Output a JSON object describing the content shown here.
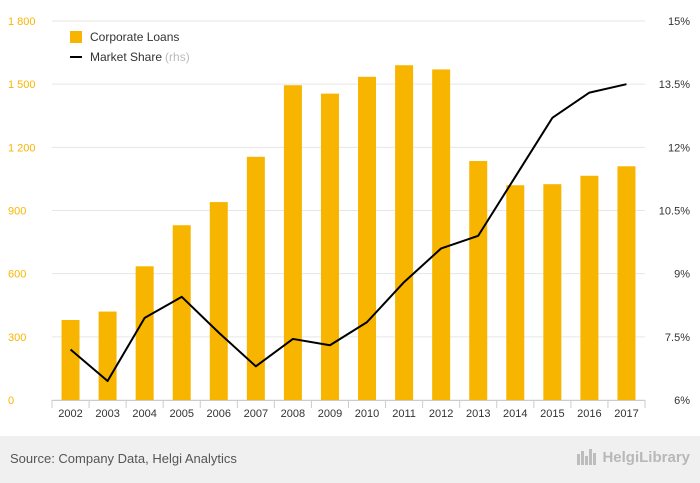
{
  "chart_data": {
    "type": "bar",
    "categories": [
      "2002",
      "2003",
      "2004",
      "2005",
      "2006",
      "2007",
      "2008",
      "2009",
      "2010",
      "2011",
      "2012",
      "2013",
      "2014",
      "2015",
      "2016",
      "2017"
    ],
    "series": [
      {
        "name": "Corporate Loans",
        "kind": "bar",
        "axis": "left",
        "color": "#f8b500",
        "values": [
          380,
          420,
          635,
          830,
          940,
          1155,
          1495,
          1455,
          1535,
          1590,
          1570,
          1135,
          1020,
          1025,
          1065,
          1110
        ]
      },
      {
        "name": "Market Share",
        "kind": "line",
        "axis": "right",
        "color": "#000000",
        "values": [
          7.2,
          6.45,
          7.95,
          8.45,
          7.6,
          6.8,
          7.45,
          7.3,
          7.85,
          8.8,
          9.6,
          9.9,
          11.3,
          12.7,
          13.3,
          13.5
        ]
      }
    ],
    "y_left": {
      "min": 0,
      "max": 1800,
      "ticks": [
        "0",
        "300",
        "600",
        "900",
        "1 200",
        "1 500",
        "1 800"
      ]
    },
    "y_right": {
      "min": 6,
      "max": 15,
      "ticks": [
        "6%",
        "7.5%",
        "9%",
        "10.5%",
        "12%",
        "13.5%",
        "15%"
      ]
    },
    "legend": {
      "items": [
        {
          "label": "Corporate Loans",
          "suffix": ""
        },
        {
          "label": "Market Share",
          "suffix": "(rhs)"
        }
      ],
      "position": "top-left"
    }
  },
  "footer": {
    "source": "Source: Company Data, Helgi Analytics",
    "logo_text": "HelgiLibrary"
  },
  "colors": {
    "bar": "#f8b500",
    "line": "#000000",
    "left_axis_text": "#f8b500",
    "grid": "#e6e6e6"
  }
}
